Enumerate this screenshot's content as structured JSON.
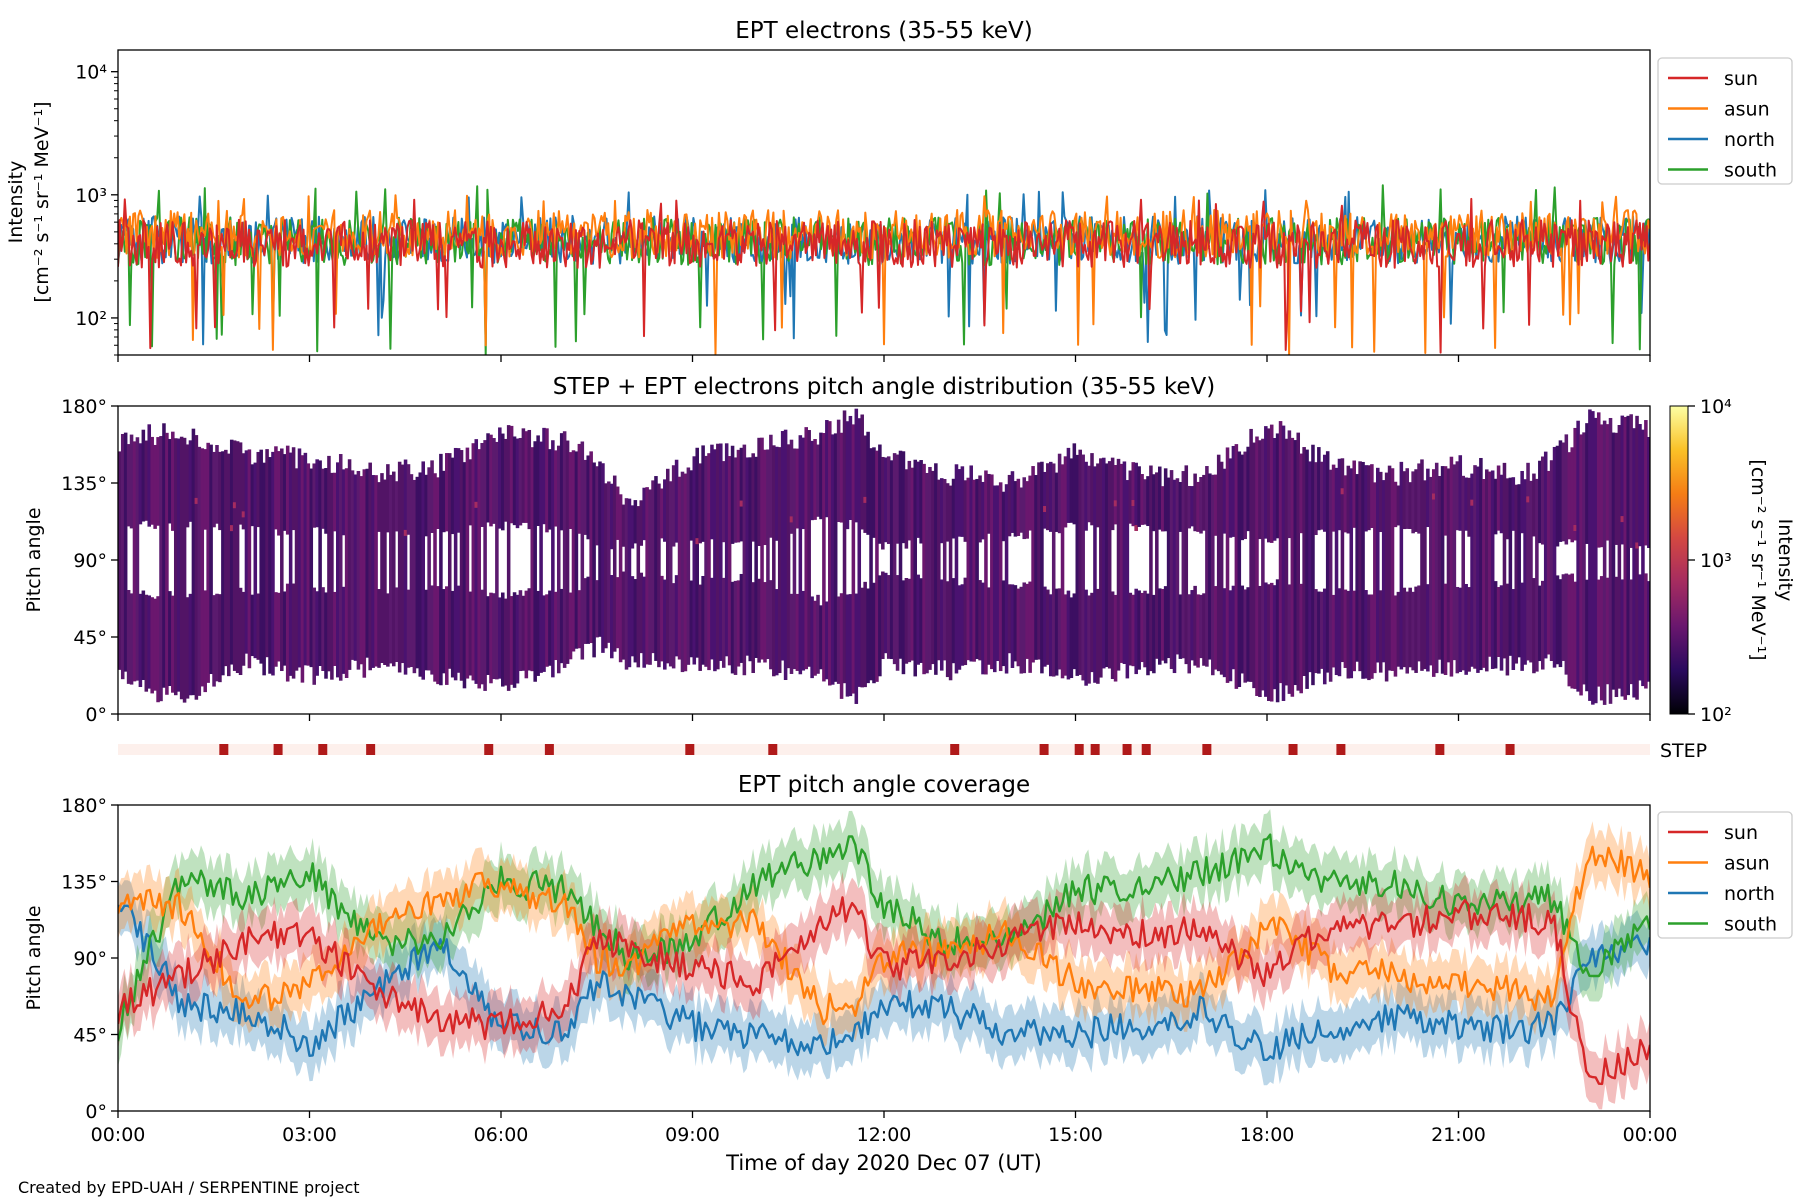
{
  "figure": {
    "credit": "Created by EPD-UAH / SERPENTINE project",
    "xlabel": "Time of day 2020 Dec 07 (UT)",
    "xticks": [
      "00:00",
      "03:00",
      "06:00",
      "09:00",
      "12:00",
      "15:00",
      "18:00",
      "21:00",
      "00:00"
    ]
  },
  "chart_data": [
    {
      "type": "line",
      "title": "EPT electrons (35-55 keV)",
      "ylabel_line1": "Intensity",
      "ylabel_line2": "[cm⁻² s⁻¹ sr⁻¹ MeV⁻¹]",
      "yscale": "log",
      "ylim": [
        50,
        15000
      ],
      "ytick_values": [
        100,
        1000,
        10000
      ],
      "ytick_labels": [
        "10²",
        "10³",
        "10⁴"
      ],
      "x_range_hours": [
        0,
        24
      ],
      "legend_placement": "outside-right-top",
      "series": [
        {
          "name": "north",
          "color": "#1f77b4",
          "typical_value": 430,
          "max_value": 1100,
          "min_value": 60
        },
        {
          "name": "south",
          "color": "#2ca02c",
          "typical_value": 420,
          "max_value": 1200,
          "min_value": 50
        },
        {
          "name": "asun",
          "color": "#ff7f0e",
          "typical_value": 480,
          "max_value": 1000,
          "min_value": 50
        },
        {
          "name": "sun",
          "color": "#d62728",
          "typical_value": 400,
          "max_value": 950,
          "min_value": 50
        }
      ]
    },
    {
      "type": "heatmap",
      "title": "STEP + EPT electrons pitch angle distribution (35-55 keV)",
      "ylabel": "Pitch angle",
      "yticks": [
        "0°",
        "45°",
        "90°",
        "135°",
        "180°"
      ],
      "ylim": [
        0,
        180
      ],
      "colorbar": {
        "label_line1": "Intensity",
        "label_line2": "[cm⁻² s⁻¹ sr⁻¹ MeV⁻¹]",
        "ticks": [
          "10²",
          "10³",
          "10⁴"
        ],
        "range": [
          100,
          10000
        ],
        "scale": "log",
        "colormap": [
          "#000004",
          "#2a0a5e",
          "#6a176e",
          "#a52c60",
          "#d44842",
          "#f57d15",
          "#fac127",
          "#fcffa4"
        ]
      },
      "coverage_outline": {
        "hours": [
          0,
          1,
          2,
          3,
          4,
          5,
          6,
          7,
          7.5,
          8,
          9,
          10,
          11,
          11.5,
          12,
          13,
          14,
          15,
          16,
          17,
          18,
          19,
          20,
          21,
          22,
          22.5,
          23,
          24
        ],
        "upper_deg": [
          160,
          165,
          152,
          150,
          140,
          145,
          165,
          160,
          145,
          125,
          150,
          155,
          165,
          175,
          150,
          140,
          135,
          152,
          140,
          138,
          170,
          145,
          140,
          145,
          140,
          150,
          172,
          168
        ],
        "lower_deg": [
          20,
          8,
          30,
          22,
          28,
          22,
          18,
          30,
          40,
          30,
          30,
          28,
          22,
          10,
          30,
          25,
          30,
          20,
          28,
          30,
          10,
          25,
          25,
          28,
          28,
          30,
          10,
          15
        ],
        "gap_low_deg": [
          70,
          70,
          72,
          74,
          72,
          74,
          70,
          72,
          80,
          82,
          78,
          80,
          66,
          70,
          82,
          78,
          76,
          70,
          72,
          72,
          78,
          72,
          72,
          74,
          76,
          80,
          80,
          80
        ],
        "gap_high_deg": [
          110,
          110,
          108,
          106,
          108,
          106,
          110,
          108,
          100,
          98,
          102,
          100,
          114,
          110,
          98,
          102,
          104,
          110,
          108,
          108,
          102,
          108,
          108,
          106,
          104,
          100,
          100,
          100
        ]
      },
      "step_label": "STEP",
      "step_band_hours": [
        1.65,
        2.5,
        3.2,
        3.95,
        5.8,
        6.75,
        8.95,
        10.25,
        13.1,
        14.5,
        15.05,
        15.3,
        15.8,
        16.1,
        17.05,
        18.4,
        19.15,
        20.7,
        21.8
      ]
    },
    {
      "type": "line",
      "title": "EPT pitch angle coverage",
      "ylabel": "Pitch angle",
      "yticks": [
        "0°",
        "45°",
        "90°",
        "135°",
        "180°"
      ],
      "ylim": [
        0,
        180
      ],
      "x_range_hours": [
        0,
        24
      ],
      "legend_placement": "outside-right-top",
      "hours": [
        0,
        1,
        2,
        3,
        4,
        5,
        6,
        7,
        7.5,
        8,
        9,
        10,
        11,
        11.5,
        12,
        13,
        14,
        15,
        16,
        17,
        18,
        19,
        20,
        21,
        22,
        22.5,
        23,
        24
      ],
      "band_halfwidth_deg": 15,
      "series": [
        {
          "name": "north",
          "color": "#1f77b4",
          "values": [
            130,
            62,
            60,
            40,
            70,
            100,
            50,
            45,
            75,
            70,
            50,
            45,
            40,
            40,
            65,
            60,
            45,
            45,
            50,
            60,
            35,
            50,
            55,
            50,
            48,
            50,
            90,
            100
          ]
        },
        {
          "name": "south",
          "color": "#2ca02c",
          "values": [
            50,
            140,
            125,
            140,
            100,
            100,
            135,
            130,
            110,
            90,
            100,
            135,
            150,
            160,
            120,
            100,
            100,
            130,
            130,
            140,
            155,
            135,
            135,
            120,
            125,
            125,
            80,
            110
          ]
        },
        {
          "name": "asun",
          "color": "#ff7f0e",
          "values": [
            125,
            120,
            62,
            75,
            110,
            125,
            135,
            120,
            90,
            85,
            110,
            110,
            60,
            60,
            90,
            95,
            105,
            75,
            70,
            70,
            110,
            85,
            80,
            75,
            70,
            65,
            150,
            140
          ]
        },
        {
          "name": "sun",
          "color": "#d62728",
          "values": [
            60,
            80,
            100,
            105,
            70,
            55,
            50,
            60,
            100,
            95,
            85,
            75,
            110,
            120,
            85,
            90,
            100,
            110,
            105,
            105,
            80,
            110,
            110,
            115,
            115,
            110,
            20,
            35
          ]
        }
      ]
    }
  ]
}
